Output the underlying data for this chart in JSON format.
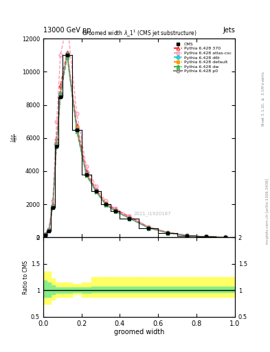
{
  "title": "Groomed width $\\lambda\\_1^1$ (CMS jet substructure)",
  "header_left": "13000 GeV pp",
  "header_right": "Jets",
  "xlabel": "groomed width",
  "ylabel_ratio": "Ratio to CMS",
  "watermark": "2021_I1920187",
  "x_bins": [
    0.0,
    0.02,
    0.04,
    0.06,
    0.08,
    0.1,
    0.15,
    0.2,
    0.25,
    0.3,
    0.35,
    0.4,
    0.5,
    0.6,
    0.7,
    0.8,
    0.9,
    1.0
  ],
  "cms_data": [
    150,
    400,
    1800,
    5500,
    8500,
    11000,
    6500,
    3800,
    2800,
    2000,
    1600,
    1150,
    570,
    270,
    110,
    40,
    15
  ],
  "series": [
    {
      "label": "Pythia 6.428 370",
      "color": "#ee3333",
      "linestyle": "--",
      "marker": "^",
      "fillstyle": "none",
      "values": [
        180,
        500,
        2000,
        6000,
        9200,
        11200,
        6800,
        4000,
        2900,
        2100,
        1700,
        1250,
        620,
        300,
        120,
        45,
        18
      ]
    },
    {
      "label": "Pythia 6.428 atlas-csc",
      "color": "#ff99bb",
      "linestyle": "--",
      "marker": "o",
      "fillstyle": "none",
      "values": [
        180,
        500,
        2200,
        7000,
        11000,
        13000,
        7500,
        4300,
        3100,
        2200,
        1750,
        1280,
        630,
        300,
        120,
        45,
        18
      ]
    },
    {
      "label": "Pythia 6.428 d6t",
      "color": "#33cccc",
      "linestyle": "--",
      "marker": "D",
      "fillstyle": "full",
      "values": [
        160,
        420,
        1850,
        5600,
        8600,
        11000,
        6500,
        3800,
        2800,
        2000,
        1600,
        1150,
        570,
        270,
        108,
        40,
        15
      ]
    },
    {
      "label": "Pythia 6.428 default",
      "color": "#ff9900",
      "linestyle": "--",
      "marker": "s",
      "fillstyle": "full",
      "values": [
        160,
        430,
        1900,
        5700,
        8700,
        11100,
        6600,
        3850,
        2850,
        2030,
        1620,
        1170,
        580,
        278,
        110,
        42,
        16
      ]
    },
    {
      "label": "Pythia 6.428 dw",
      "color": "#33bb33",
      "linestyle": "--",
      "marker": "*",
      "fillstyle": "full",
      "values": [
        160,
        420,
        1850,
        5600,
        8600,
        10900,
        6400,
        3750,
        2770,
        1980,
        1580,
        1140,
        565,
        268,
        107,
        40,
        15
      ]
    },
    {
      "label": "Pythia 6.428 p0",
      "color": "#888888",
      "linestyle": "-",
      "marker": "o",
      "fillstyle": "none",
      "values": [
        165,
        430,
        1900,
        5700,
        8700,
        11100,
        6550,
        3820,
        2820,
        2010,
        1610,
        1160,
        575,
        273,
        108,
        41,
        16
      ]
    }
  ],
  "ratio_yellow_lo": [
    0.75,
    0.75,
    0.82,
    0.88,
    0.88,
    0.88,
    0.92,
    0.88,
    0.88,
    0.88,
    0.88,
    0.88,
    0.88,
    0.88,
    0.88,
    0.88,
    0.88
  ],
  "ratio_yellow_hi": [
    1.35,
    1.35,
    1.22,
    1.15,
    1.15,
    1.15,
    1.12,
    1.15,
    1.25,
    1.25,
    1.25,
    1.25,
    1.25,
    1.25,
    1.25,
    1.25,
    1.25
  ],
  "ratio_green_lo": [
    0.87,
    0.88,
    0.92,
    0.95,
    0.95,
    0.95,
    0.96,
    0.95,
    0.96,
    0.96,
    0.96,
    0.96,
    0.96,
    0.96,
    0.96,
    0.96,
    0.96
  ],
  "ratio_green_hi": [
    1.18,
    1.15,
    1.1,
    1.05,
    1.05,
    1.05,
    1.05,
    1.05,
    1.07,
    1.07,
    1.07,
    1.07,
    1.07,
    1.07,
    1.07,
    1.07,
    1.07
  ],
  "ylim_main": [
    0,
    12000
  ],
  "ylim_ratio": [
    0.5,
    2.0
  ],
  "xlim": [
    0.0,
    1.0
  ],
  "yticks_main": [
    0,
    2000,
    4000,
    6000,
    8000,
    10000,
    12000
  ],
  "yticks_ratio": [
    0.5,
    1.0,
    1.5,
    2.0
  ],
  "background_color": "#ffffff"
}
